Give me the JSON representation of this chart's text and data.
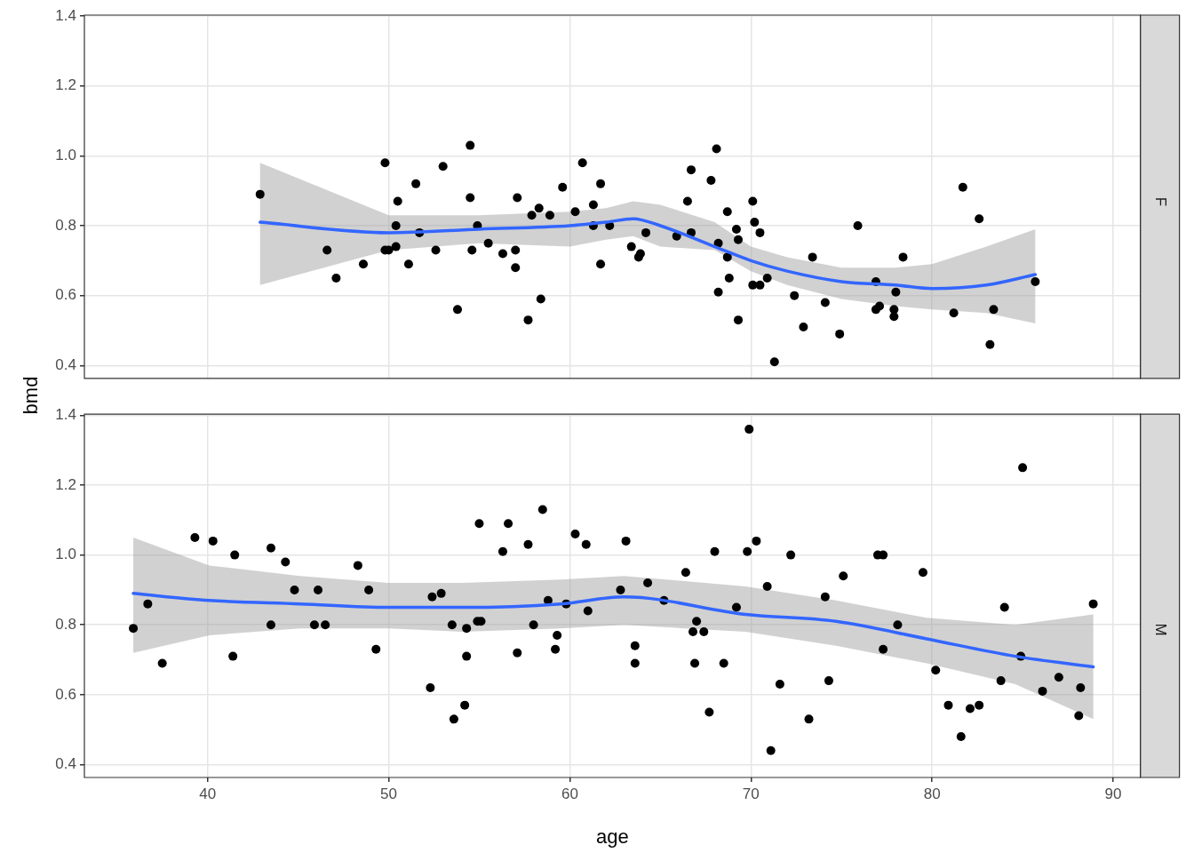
{
  "chart_data": [
    {
      "type": "scatter",
      "y2label": "F",
      "ylabel": "bmd",
      "xlim": [
        33.2,
        91.5
      ],
      "ylim": [
        0.363,
        1.403
      ],
      "xticks": [
        40,
        50,
        60,
        70,
        80,
        90
      ],
      "yticks": [
        0.4,
        0.6,
        0.8,
        {
          "value": 1,
          "label": "1.0"
        },
        1.2,
        1.4
      ],
      "grid": true,
      "tick_labels": "y",
      "series": [
        {
          "type": "scatter",
          "marker": "circle",
          "color": "#000000",
          "x": [
            42.9,
            46.6,
            47.1,
            48.6,
            49.8,
            49.8,
            50.0,
            50.4,
            50.4,
            50.5,
            51.1,
            51.5,
            51.7,
            52.6,
            53.0,
            53.8,
            54.5,
            54.5,
            54.6,
            54.9,
            55.5,
            56.3,
            57.0,
            57.0,
            57.1,
            57.7,
            57.9,
            58.3,
            58.4,
            58.9,
            59.6,
            60.3,
            60.7,
            61.3,
            61.3,
            61.7,
            61.7,
            62.2,
            63.4,
            63.9,
            63.8,
            64.2,
            65.9,
            66.5,
            66.7,
            66.7,
            67.8,
            68.1,
            68.2,
            68.2,
            68.7,
            68.7,
            68.8,
            69.2,
            69.3,
            69.3,
            70.1,
            70.1,
            70.2,
            70.5,
            70.5,
            70.9,
            71.3,
            72.4,
            72.9,
            73.4,
            74.1,
            74.9,
            75.9,
            76.9,
            76.9,
            77.1,
            77.9,
            77.9,
            78.0,
            78.4,
            81.2,
            81.7,
            82.6,
            83.2,
            83.4,
            85.7
          ],
          "values": [
            0.89,
            0.73,
            0.65,
            0.69,
            0.98,
            0.73,
            0.73,
            0.74,
            0.8,
            0.87,
            0.69,
            0.92,
            0.78,
            0.73,
            0.97,
            0.56,
            1.03,
            0.88,
            0.73,
            0.8,
            0.75,
            0.72,
            0.73,
            0.68,
            0.88,
            0.53,
            0.83,
            0.85,
            0.59,
            0.83,
            0.91,
            0.84,
            0.98,
            0.86,
            0.8,
            0.92,
            0.69,
            0.8,
            0.74,
            0.72,
            0.71,
            0.78,
            0.77,
            0.87,
            0.96,
            0.78,
            0.93,
            1.02,
            0.75,
            0.61,
            0.84,
            0.71,
            0.65,
            0.79,
            0.76,
            0.53,
            0.63,
            0.87,
            0.81,
            0.78,
            0.63,
            0.65,
            0.41,
            0.6,
            0.51,
            0.71,
            0.58,
            0.49,
            0.8,
            0.64,
            0.56,
            0.57,
            0.56,
            0.54,
            0.61,
            0.71,
            0.55,
            0.91,
            0.82,
            0.46,
            0.56,
            0.64
          ]
        },
        {
          "type": "line",
          "marker": "none",
          "color": "#3366ff",
          "x": [
            42.9,
            50,
            55,
            60,
            62,
            63.5,
            65,
            68,
            70,
            72,
            75,
            78,
            80,
            83,
            85.7
          ],
          "values": [
            0.81,
            0.78,
            0.79,
            0.8,
            0.81,
            0.82,
            0.8,
            0.74,
            0.7,
            0.67,
            0.64,
            0.63,
            0.62,
            0.63,
            0.66
          ],
          "upper": [
            0.98,
            0.83,
            0.83,
            0.84,
            0.85,
            0.87,
            0.86,
            0.81,
            0.74,
            0.71,
            0.68,
            0.68,
            0.69,
            0.74,
            0.79
          ],
          "lower": [
            0.63,
            0.73,
            0.75,
            0.74,
            0.76,
            0.77,
            0.74,
            0.73,
            0.67,
            0.63,
            0.59,
            0.57,
            0.56,
            0.55,
            0.52
          ]
        }
      ]
    },
    {
      "type": "scatter",
      "y2label": "M",
      "xlabel": "age",
      "xlim": [
        33.2,
        91.5
      ],
      "ylim": [
        0.363,
        1.403
      ],
      "xticks": [
        40,
        50,
        60,
        70,
        80,
        90
      ],
      "yticks": [
        0.4,
        0.6,
        0.8,
        {
          "value": 1,
          "label": "1.0"
        },
        1.2,
        1.4
      ],
      "grid": true,
      "series": [
        {
          "type": "scatter",
          "marker": "circle",
          "color": "#000000",
          "x": [
            35.9,
            36.7,
            37.5,
            39.3,
            40.3,
            41.5,
            41.4,
            43.5,
            44.3,
            43.5,
            44.8,
            46.1,
            45.9,
            46.5,
            48.3,
            48.9,
            49.3,
            52.4,
            52.9,
            52.3,
            53.5,
            54.3,
            54.3,
            54.2,
            53.6,
            55.0,
            54.9,
            55.1,
            56.3,
            56.6,
            57.7,
            58.5,
            57.1,
            58.0,
            58.8,
            59.3,
            59.2,
            59.8,
            60.3,
            60.9,
            61.0,
            62.8,
            63.1,
            63.6,
            63.6,
            64.3,
            65.2,
            66.4,
            67.0,
            66.8,
            67.4,
            66.9,
            68.5,
            67.7,
            68.0,
            69.2,
            69.9,
            69.8,
            70.3,
            70.9,
            71.1,
            71.6,
            72.2,
            73.2,
            74.1,
            74.3,
            75.1,
            77.0,
            77.3,
            77.3,
            78.1,
            79.5,
            80.2,
            80.9,
            81.6,
            82.1,
            82.6,
            84.0,
            83.8,
            85.0,
            84.9,
            86.1,
            87.0,
            88.2,
            88.1,
            88.9
          ],
          "values": [
            0.79,
            0.86,
            0.69,
            1.05,
            1.04,
            1.0,
            0.71,
            1.02,
            0.98,
            0.8,
            0.9,
            0.9,
            0.8,
            0.8,
            0.97,
            0.9,
            0.73,
            0.88,
            0.89,
            0.62,
            0.8,
            0.79,
            0.71,
            0.57,
            0.53,
            1.09,
            0.81,
            0.81,
            1.01,
            1.09,
            1.03,
            1.13,
            0.72,
            0.8,
            0.87,
            0.77,
            0.73,
            0.86,
            1.06,
            1.03,
            0.84,
            0.9,
            1.04,
            0.74,
            0.69,
            0.92,
            0.87,
            0.95,
            0.81,
            0.78,
            0.78,
            0.69,
            0.69,
            0.55,
            1.01,
            0.85,
            1.36,
            1.01,
            1.04,
            0.91,
            0.44,
            0.63,
            1.0,
            0.53,
            0.88,
            0.64,
            0.94,
            1.0,
            1.0,
            0.73,
            0.8,
            0.95,
            0.67,
            0.57,
            0.48,
            0.56,
            0.57,
            0.85,
            0.64,
            1.25,
            0.71,
            0.61,
            0.65,
            0.62,
            0.54,
            0.86
          ]
        },
        {
          "type": "line",
          "marker": "none",
          "color": "#3366ff",
          "x": [
            35.9,
            40.1,
            45.1,
            50.0,
            54.1,
            59.5,
            63.0,
            69.7,
            74.7,
            79.7,
            84.6,
            88.9
          ],
          "values": [
            0.89,
            0.87,
            0.86,
            0.85,
            0.85,
            0.86,
            0.88,
            0.83,
            0.81,
            0.76,
            0.71,
            0.68
          ],
          "upper": [
            1.05,
            0.97,
            0.94,
            0.92,
            0.92,
            0.93,
            0.94,
            0.91,
            0.87,
            0.82,
            0.8,
            0.83
          ],
          "lower": [
            0.72,
            0.77,
            0.79,
            0.79,
            0.78,
            0.79,
            0.8,
            0.78,
            0.74,
            0.69,
            0.63,
            0.53
          ]
        }
      ]
    }
  ]
}
